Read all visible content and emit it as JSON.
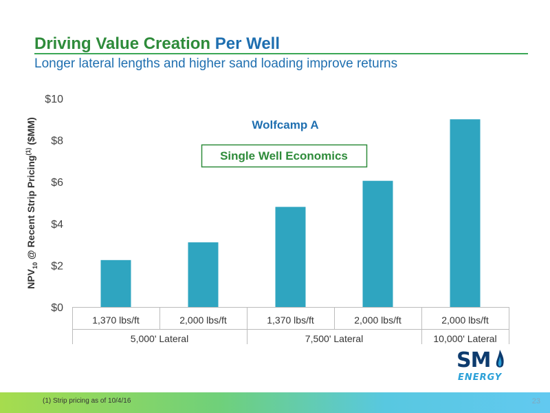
{
  "header": {
    "title_part1": "Driving Value Creation",
    "title_part2": "Per Well",
    "subtitle": "Longer lateral lengths and higher sand loading improve returns"
  },
  "chart_data": {
    "type": "bar",
    "ylabel": "NPV10 @ Recent Strip Pricing(1) ($MM)",
    "ylabel_parts": {
      "main": "NPV",
      "sub": "10",
      "mid": " @ Recent Strip Pricing",
      "sup": "(1)",
      "end": " ($MM)"
    },
    "ylim": [
      0,
      10
    ],
    "yticks": [
      0,
      2,
      4,
      6,
      8,
      10
    ],
    "ytick_labels": [
      "$0",
      "$2",
      "$4",
      "$6",
      "$8",
      "$10"
    ],
    "categories": [
      "1,370 lbs/ft",
      "2,000 lbs/ft",
      "1,370 lbs/ft",
      "2,000 lbs/ft",
      "2,000 lbs/ft"
    ],
    "groups": [
      {
        "label": "5,000' Lateral",
        "span": [
          0,
          1
        ]
      },
      {
        "label": "7,500' Lateral",
        "span": [
          2,
          3
        ]
      },
      {
        "label": "10,000' Lateral",
        "span": [
          4,
          4
        ]
      }
    ],
    "values": [
      2.25,
      3.1,
      4.8,
      6.05,
      9.0
    ],
    "annotations": [
      "Wolfcamp A",
      "Single Well Economics"
    ],
    "bar_color": "#2fa5c0",
    "grid": false,
    "legend": "none"
  },
  "footer": {
    "footnote": "(1)   Strip pricing as of 10/4/16",
    "page_number": "23"
  },
  "logo": {
    "mark": "SM",
    "word": "ENERGY"
  },
  "colors": {
    "title_green": "#2e8b3a",
    "title_blue": "#1f6fb0",
    "annotation_blue": "#1f6fb0",
    "annotation_green": "#2e8b3a"
  }
}
